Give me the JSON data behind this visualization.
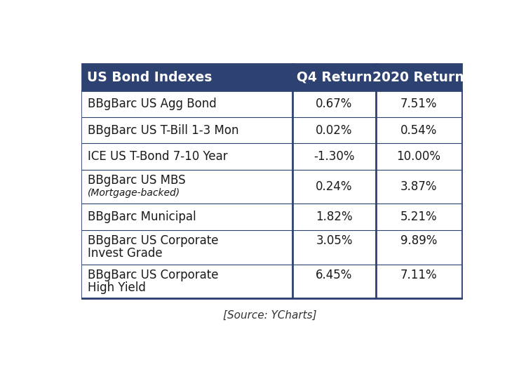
{
  "title": "US Bond Indexes",
  "col2_header": "Q4 Return",
  "col3_header": "2020 Return",
  "header_bg": "#2e4272",
  "header_text_color": "#ffffff",
  "border_color": "#2e4272",
  "source_text": "[Source: YCharts]",
  "rows": [
    {
      "label_line1": "BBgBarc US Agg Bond",
      "label_line2": "",
      "label_line2_italic": false,
      "q4": "0.67%",
      "ret2020": "7.51%",
      "val_align_top": false
    },
    {
      "label_line1": "BBgBarc US T-Bill 1-3 Mon",
      "label_line2": "",
      "label_line2_italic": false,
      "q4": "0.02%",
      "ret2020": "0.54%",
      "val_align_top": false
    },
    {
      "label_line1": "ICE US T-Bond 7-10 Year",
      "label_line2": "",
      "label_line2_italic": false,
      "q4": "-1.30%",
      "ret2020": "10.00%",
      "val_align_top": false
    },
    {
      "label_line1": "BBgBarc US MBS",
      "label_line2": "(Mortgage-backed)",
      "label_line2_italic": true,
      "q4": "0.24%",
      "ret2020": "3.87%",
      "val_align_top": false
    },
    {
      "label_line1": "BBgBarc Municipal",
      "label_line2": "",
      "label_line2_italic": false,
      "q4": "1.82%",
      "ret2020": "5.21%",
      "val_align_top": false
    },
    {
      "label_line1": "BBgBarc US Corporate",
      "label_line2": "Invest Grade",
      "label_line2_italic": false,
      "q4": "3.05%",
      "ret2020": "9.89%",
      "val_align_top": true
    },
    {
      "label_line1": "BBgBarc US Corporate",
      "label_line2": "High Yield",
      "label_line2_italic": false,
      "q4": "6.45%",
      "ret2020": "7.11%",
      "val_align_top": true
    }
  ],
  "fig_width": 7.5,
  "fig_height": 5.23,
  "dpi": 100
}
